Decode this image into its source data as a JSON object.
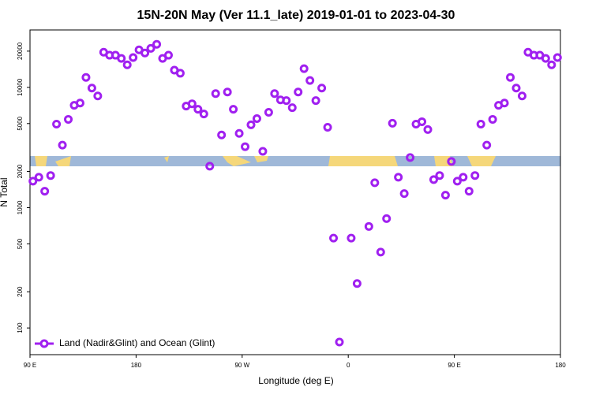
{
  "chart_data": {
    "type": "scatter",
    "title": "15N-20N May (Ver 11.1_late)   2019-01-01 to 2023-04-30",
    "xlabel": "Longitude (deg E)",
    "ylabel": "N Total",
    "xlim": [
      90,
      540
    ],
    "xticks": [
      {
        "value": 90,
        "label": "90 E"
      },
      180,
      {
        "value": 270,
        "label": "90 W"
      },
      {
        "value": 360,
        "label": "0"
      },
      {
        "value": 450,
        "label": "90 E"
      },
      {
        "value": 540,
        "label": "180"
      }
    ],
    "ylim": [
      60,
      30000
    ],
    "log_y": true,
    "yticks": [
      100,
      200,
      500,
      1000,
      2000,
      5000,
      10000,
      20000
    ],
    "legend": "lower left",
    "series": [
      {
        "name": "Land (Nadir&Glint) and Ocean (Glint)",
        "color": "#a020f0",
        "x": [
          92.5,
          97.5,
          102.5,
          107.5,
          112.5,
          117.5,
          122.5,
          127.5,
          132.5,
          137.5,
          142.5,
          147.5,
          152.5,
          157.5,
          162.5,
          167.5,
          172.5,
          177.5,
          182.5,
          187.5,
          192.5,
          197.5,
          202.5,
          207.5,
          212.5,
          217.5,
          222.5,
          227.5,
          232.5,
          237.5,
          242.5,
          247.5,
          252.5,
          257.5,
          262.5,
          267.5,
          272.5,
          277.5,
          282.5,
          287.5,
          292.5,
          297.5,
          302.5,
          307.5,
          312.5,
          317.5,
          322.5,
          327.5,
          332.5,
          337.5,
          342.5,
          347.5,
          352.5,
          362.5,
          367.5,
          377.5,
          382.5,
          387.5,
          392.5,
          397.5,
          402.5,
          407.5,
          412.5,
          417.5,
          422.5,
          427.5,
          432.5,
          437.5,
          442.5,
          447.5,
          452.5,
          457.5,
          462.5,
          467.5,
          472.5,
          477.5,
          482.5,
          487.5,
          492.5,
          497.5,
          502.5,
          507.5,
          512.5,
          517.5,
          522.5,
          527.5,
          532.5,
          537.5
        ],
        "values": [
          1660,
          1790,
          1370,
          1850,
          4950,
          3310,
          5420,
          7090,
          7410,
          12100,
          9860,
          8480,
          19600,
          18500,
          18500,
          17400,
          15400,
          17700,
          20500,
          19300,
          21100,
          22800,
          17400,
          18500,
          13900,
          13100,
          6980,
          7300,
          6580,
          6010,
          2210,
          8870,
          4020,
          9140,
          6580,
          4140,
          3210,
          4880,
          5500,
          2940,
          6200,
          8870,
          7870,
          7760,
          6780,
          9140,
          14300,
          11400,
          7760,
          9860,
          4660,
          558,
          76.4,
          558,
          234,
          698,
          1610,
          427,
          811,
          5030,
          1790,
          1310,
          2610,
          4950,
          5180,
          4460,
          1710,
          1850,
          1270,
          2420,
          1660,
          1790,
          1370,
          1850,
          4950,
          3310,
          5420,
          7090,
          7410,
          12100,
          9860,
          8480,
          19600,
          18500,
          18500,
          17400,
          15400,
          17700
        ]
      }
    ]
  }
}
